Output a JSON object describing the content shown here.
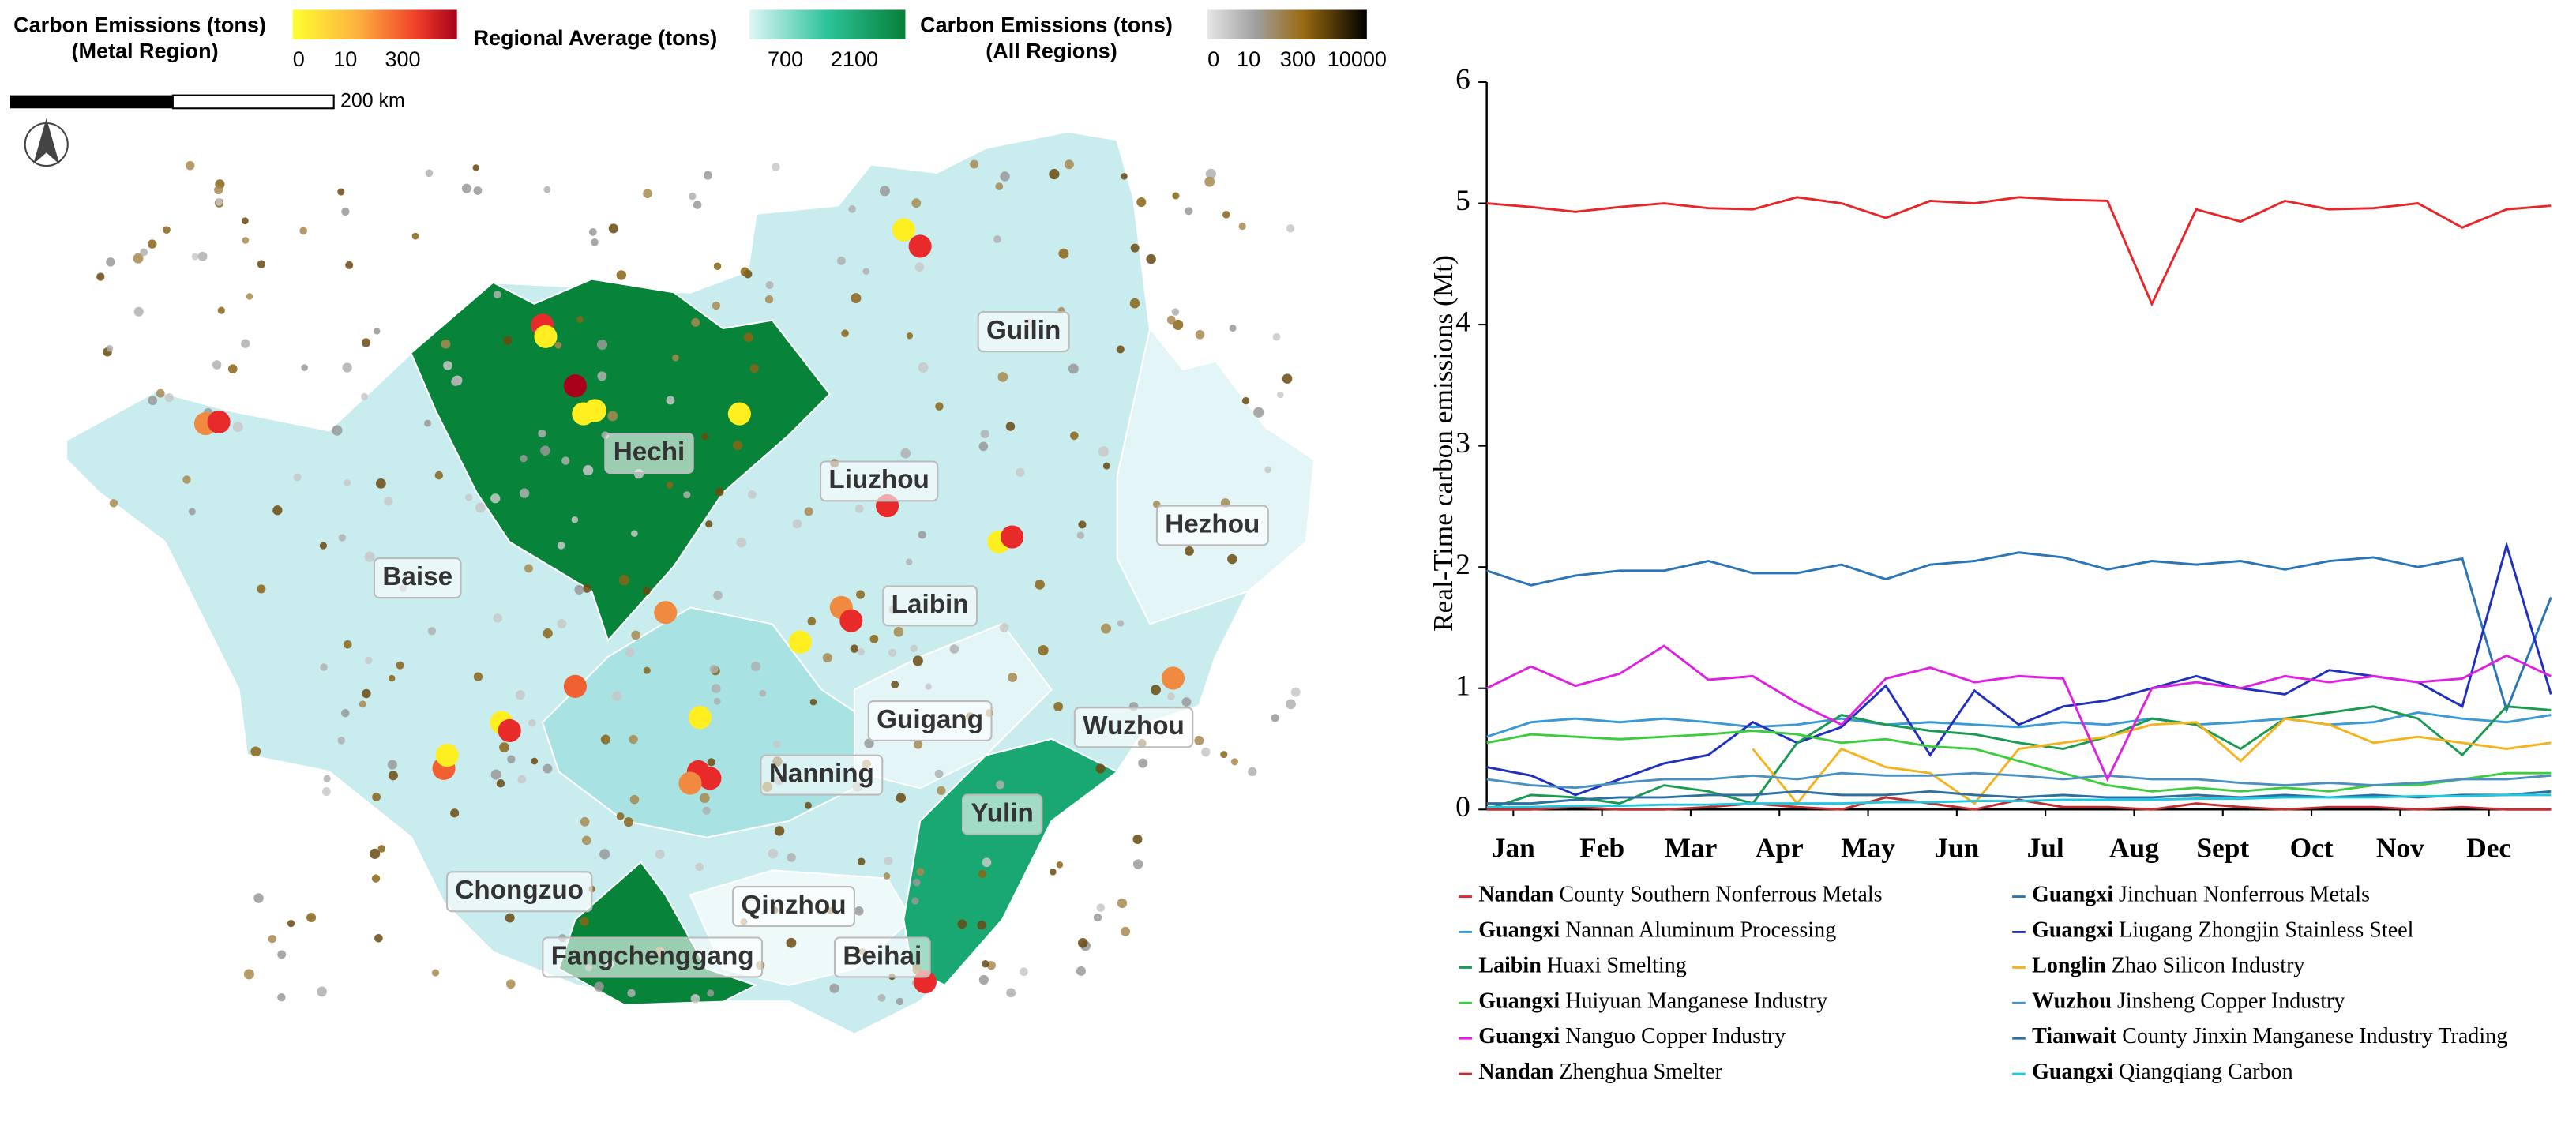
{
  "map": {
    "legend": [
      {
        "title": "Carbon Emissions (tons)",
        "subtitle": "(Metal Region)",
        "ticks": [
          "0",
          "10",
          "300"
        ]
      },
      {
        "title": "Regional Average (tons)",
        "ticks": [
          "700",
          "2100"
        ]
      },
      {
        "title": "Carbon Emissions (tons)",
        "subtitle": "(All Regions)",
        "ticks": [
          "0",
          "10",
          "300",
          "10000"
        ]
      }
    ],
    "scale": "200 km",
    "regions": [
      "Guilin",
      "Hechi",
      "Liuzhou",
      "Hezhou",
      "Baise",
      "Laibin",
      "Guigang",
      "Wuzhou",
      "Nanning",
      "Yulin",
      "Chongzuo",
      "Qinzhou",
      "Fangchenggang",
      "Beihai"
    ]
  },
  "chart_data": {
    "type": "line",
    "ylabel": "Real-Time carbon emissions (Mt)",
    "x": [
      -0.3,
      0.2,
      0.7,
      1.2,
      1.7,
      2.2,
      2.7,
      3.2,
      3.7,
      4.2,
      4.7,
      5.2,
      5.7,
      6.2,
      6.7,
      7.2,
      7.7,
      8.2,
      8.7,
      9.2,
      9.7,
      10.2,
      10.7,
      11.2,
      11.7
    ],
    "xlim": [
      -0.3,
      11.7
    ],
    "xticks": [
      {
        "value": 0,
        "label": "Jan"
      },
      {
        "value": 1,
        "label": "Feb"
      },
      {
        "value": 2,
        "label": "Mar"
      },
      {
        "value": 3,
        "label": "Apr"
      },
      {
        "value": 4,
        "label": "May"
      },
      {
        "value": 5,
        "label": "Jun"
      },
      {
        "value": 6,
        "label": "Jul"
      },
      {
        "value": 7,
        "label": "Aug"
      },
      {
        "value": 8,
        "label": "Sept"
      },
      {
        "value": 9,
        "label": "Oct"
      },
      {
        "value": 10,
        "label": "Nov"
      },
      {
        "value": 11,
        "label": "Dec"
      }
    ],
    "ylim": [
      0,
      6
    ],
    "yticks": [
      0,
      1,
      2,
      3,
      4,
      5,
      6
    ],
    "series": [
      {
        "name": "Nandan County Southern Nonferrous Metals",
        "color": "#e8262a",
        "values": [
          5.0,
          4.97,
          4.93,
          4.97,
          5.0,
          4.96,
          4.95,
          5.05,
          5.0,
          4.88,
          5.02,
          5.0,
          5.05,
          5.03,
          5.02,
          4.17,
          4.95,
          4.85,
          5.02,
          4.95,
          4.96,
          5.0,
          4.8,
          4.95,
          4.98
        ]
      },
      {
        "name": "Guangxi Jinchuan Nonferrous Metals",
        "color": "#2a75b5",
        "values": [
          1.97,
          1.85,
          1.93,
          1.97,
          1.97,
          2.05,
          1.95,
          1.95,
          2.02,
          1.9,
          2.02,
          2.05,
          2.12,
          2.08,
          1.98,
          2.05,
          2.02,
          2.05,
          1.98,
          2.05,
          2.08,
          2.0,
          2.07,
          0.82,
          1.75
        ]
      },
      {
        "name": "Guangxi Nannan Aluminum Processing",
        "color": "#3a9ad6",
        "values": [
          0.6,
          0.72,
          0.75,
          0.72,
          0.75,
          0.72,
          0.68,
          0.7,
          0.75,
          0.7,
          0.72,
          0.7,
          0.68,
          0.72,
          0.7,
          0.75,
          0.7,
          0.72,
          0.75,
          0.7,
          0.72,
          0.8,
          0.75,
          0.72,
          0.78
        ]
      },
      {
        "name": "Guangxi Liugang Zhongjin Stainless Steel",
        "color": "#1f2fc0",
        "values": [
          0.35,
          0.28,
          0.12,
          0.25,
          0.38,
          0.45,
          0.72,
          0.55,
          0.68,
          1.02,
          0.45,
          0.98,
          0.7,
          0.85,
          0.9,
          1.0,
          1.1,
          1.0,
          0.95,
          1.15,
          1.1,
          1.05,
          0.85,
          2.18,
          0.95
        ]
      },
      {
        "name": "Laibin Huaxi Smelting",
        "color": "#1a9a50",
        "values": [
          0.0,
          0.12,
          0.1,
          0.05,
          0.2,
          0.15,
          0.05,
          0.55,
          0.78,
          0.7,
          0.65,
          0.62,
          0.55,
          0.5,
          0.6,
          0.75,
          0.7,
          0.5,
          0.75,
          0.8,
          0.85,
          0.75,
          0.45,
          0.85,
          0.82
        ]
      },
      {
        "name": "Longlin Zhao Silicon Industry",
        "color": "#f5b21a",
        "values": [
          null,
          null,
          null,
          null,
          null,
          null,
          0.5,
          0.05,
          0.5,
          0.35,
          0.3,
          0.05,
          0.5,
          0.55,
          0.6,
          0.7,
          0.72,
          0.4,
          0.75,
          0.7,
          0.55,
          0.6,
          0.55,
          0.5,
          0.55
        ]
      },
      {
        "name": "Guangxi Huiyuan Manganese Industry",
        "color": "#3ccc3c",
        "values": [
          0.55,
          0.62,
          0.6,
          0.58,
          0.6,
          0.62,
          0.65,
          0.62,
          0.55,
          0.58,
          0.52,
          0.5,
          0.4,
          0.3,
          0.2,
          0.15,
          0.18,
          0.15,
          0.18,
          0.15,
          0.2,
          0.2,
          0.25,
          0.3,
          0.3
        ]
      },
      {
        "name": "Wuzhou Jinsheng Copper Industry",
        "color": "#4a90c0",
        "values": [
          0.25,
          0.2,
          0.18,
          0.22,
          0.25,
          0.25,
          0.28,
          0.25,
          0.3,
          0.28,
          0.28,
          0.3,
          0.28,
          0.25,
          0.28,
          0.25,
          0.25,
          0.22,
          0.2,
          0.22,
          0.2,
          0.22,
          0.25,
          0.25,
          0.28
        ]
      },
      {
        "name": "Guangxi Nanguo Copper Industry",
        "color": "#e020e0",
        "values": [
          1.0,
          1.18,
          1.02,
          1.12,
          1.35,
          1.07,
          1.1,
          0.88,
          0.7,
          1.08,
          1.17,
          1.05,
          1.1,
          1.08,
          0.25,
          1.0,
          1.05,
          1.0,
          1.1,
          1.05,
          1.1,
          1.05,
          1.08,
          1.27,
          1.1
        ]
      },
      {
        "name": "Tianwait County Jinxin Manganese Industry Trading",
        "color": "#2c6fa0",
        "values": [
          0.05,
          0.05,
          0.08,
          0.1,
          0.1,
          0.12,
          0.12,
          0.15,
          0.12,
          0.12,
          0.15,
          0.12,
          0.1,
          0.12,
          0.1,
          0.1,
          0.12,
          0.1,
          0.12,
          0.1,
          0.12,
          0.1,
          0.12,
          0.12,
          0.15
        ]
      },
      {
        "name": "Nandan Zhenghua Smelter",
        "color": "#c03030",
        "values": [
          0,
          0,
          0.02,
          0,
          0,
          0.02,
          0.05,
          0.02,
          0,
          0.1,
          0.05,
          0,
          0.08,
          0.02,
          0.02,
          0,
          0.05,
          0.02,
          0,
          0.02,
          0.02,
          0,
          0.02,
          0,
          0
        ]
      },
      {
        "name": "Guangxi Qiangqiang Carbon",
        "color": "#20c8e0",
        "values": [
          0.02,
          0.02,
          0.03,
          0.03,
          0.04,
          0.04,
          0.05,
          0.05,
          0.05,
          0.06,
          0.06,
          0.07,
          0.07,
          0.08,
          0.08,
          0.08,
          0.09,
          0.09,
          0.1,
          0.1,
          0.1,
          0.11,
          0.11,
          0.12,
          0.12
        ]
      }
    ]
  }
}
